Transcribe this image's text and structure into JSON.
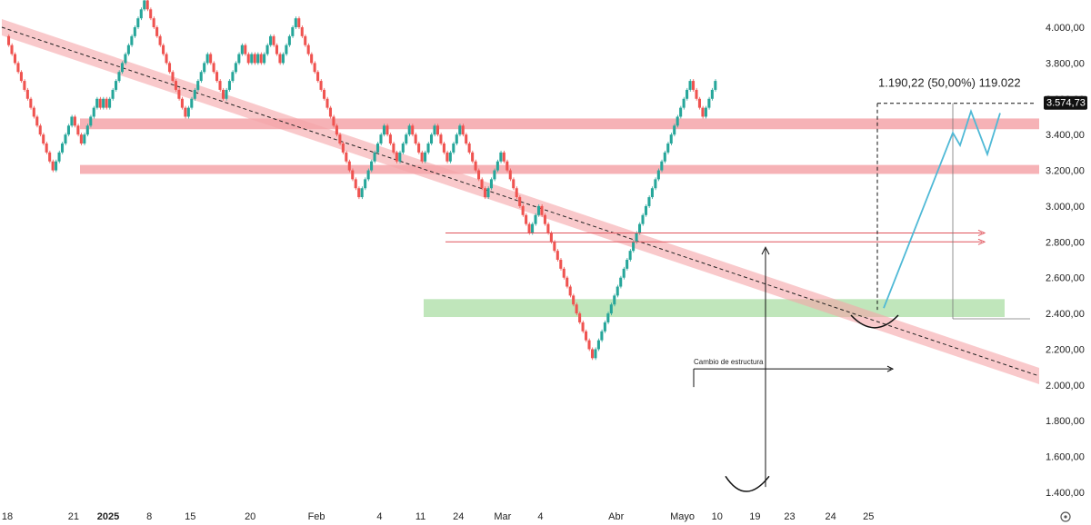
{
  "chart_data": {
    "type": "renko",
    "y_axis": {
      "ticks": [
        {
          "value": 4000,
          "label": "4.000,00"
        },
        {
          "value": 3800,
          "label": "3.800,00"
        },
        {
          "value": 3600,
          "label": "3.600,00"
        },
        {
          "value": 3400,
          "label": "3.400,00"
        },
        {
          "value": 3200,
          "label": "3.200,00"
        },
        {
          "value": 3000,
          "label": "3.000,00"
        },
        {
          "value": 2800,
          "label": "2.800,00"
        },
        {
          "value": 2600,
          "label": "2.600,00"
        },
        {
          "value": 2400,
          "label": "2.400,00"
        },
        {
          "value": 2200,
          "label": "2.200,00"
        },
        {
          "value": 2000,
          "label": "2.000,00"
        },
        {
          "value": 1800,
          "label": "1.800,00"
        },
        {
          "value": 1600,
          "label": "1.600,00"
        },
        {
          "value": 1400,
          "label": "1.400,00"
        }
      ],
      "range": [
        1320,
        4060
      ],
      "price_tag": {
        "value": 3574.73,
        "label": "3.574,73"
      }
    },
    "x_axis": {
      "ticks": [
        {
          "label": "18",
          "bold": false,
          "index": 0
        },
        {
          "label": "21",
          "bold": false,
          "index": 21
        },
        {
          "label": "2025",
          "bold": true,
          "index": 32
        },
        {
          "label": "8",
          "bold": false,
          "index": 45
        },
        {
          "label": "15",
          "bold": false,
          "index": 58
        },
        {
          "label": "20",
          "bold": false,
          "index": 77
        },
        {
          "label": "Feb",
          "bold": false,
          "index": 98
        },
        {
          "label": "4",
          "bold": false,
          "index": 118
        },
        {
          "label": "11",
          "bold": false,
          "index": 131
        },
        {
          "label": "24",
          "bold": false,
          "index": 143
        },
        {
          "label": "Mar",
          "bold": false,
          "index": 157
        },
        {
          "label": "4",
          "bold": false,
          "index": 169
        },
        {
          "label": "Abr",
          "bold": false,
          "index": 193
        },
        {
          "label": "Mayo",
          "bold": false,
          "index": 214
        },
        {
          "label": "10",
          "bold": false,
          "index": 225
        },
        {
          "label": "19",
          "bold": false,
          "index": 237
        },
        {
          "label": "23",
          "bold": false,
          "index": 248
        },
        {
          "label": "24",
          "bold": false,
          "index": 261
        },
        {
          "label": "25",
          "bold": false,
          "index": 273
        }
      ]
    },
    "brick_size": 50,
    "start_price": 3950,
    "brick_directions": "DDDDDDDDDDDDDDDUUUUUUDDDUUUUUDUDUUUUUUUUUUUUDDDDDDDDDDDDDUUUUUUUDDDDDUUUUUUDDUDUDUUUDDDUUUUUDDDDDDDDDDDDDDDDDDDDUUUUUUUUDDDDUUUUDDDDUUUUDDDDUUUUDDDDDDDDUUUUUDDDDDDDDDUUUDDDDDDDDDDDDDDDDDUUUUUUUUUUUUUUUUUUUUUUUUUUUUUUUDDDDUUUU",
    "colors": {
      "up": "#26a69a",
      "down": "#ef5350",
      "projection": "#4fb9d6",
      "zone_red": "#f5a5a9",
      "zone_green": "#b9e3b4"
    },
    "annotations": {
      "measure_label": "1.190,22 (50,00%) 119.022",
      "structure_label": "Cambio de estructura"
    },
    "zones": [
      {
        "name": "resistance-upper",
        "y_from": 3430,
        "y_to": 3490,
        "color": "red"
      },
      {
        "name": "resistance-lower",
        "y_from": 3180,
        "y_to": 3230,
        "color": "red"
      },
      {
        "name": "support",
        "y_from": 2380,
        "y_to": 2480,
        "color": "green"
      }
    ],
    "trend_channel": {
      "from": 4000,
      "to": 2050
    },
    "projection_path": [
      2430,
      3410,
      3340,
      3530,
      3290,
      3520
    ]
  }
}
